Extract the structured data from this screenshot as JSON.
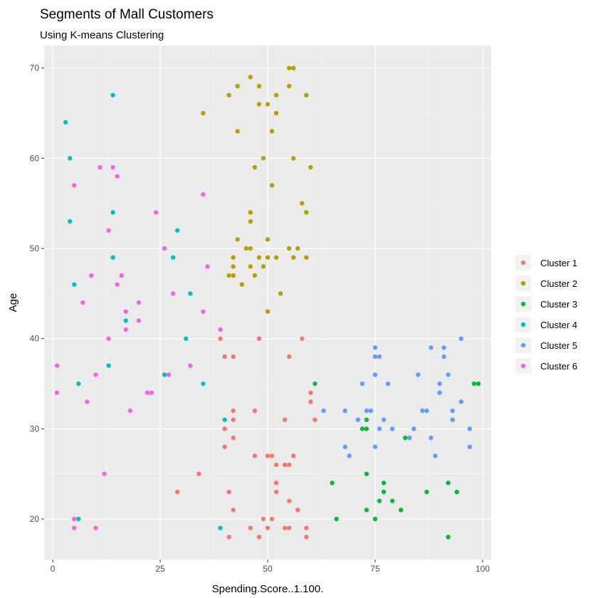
{
  "chart_data": {
    "type": "scatter",
    "title": "Segments of Mall Customers",
    "subtitle": "Using K-means Clustering",
    "xlabel": "Spending.Score..1.100.",
    "ylabel": "Age",
    "xlim": [
      -2,
      102
    ],
    "ylim": [
      15.5,
      72.5
    ],
    "xticks": [
      0,
      25,
      50,
      75,
      100
    ],
    "yticks": [
      20,
      30,
      40,
      50,
      60,
      70
    ],
    "grid": true,
    "legend_position": "right",
    "series": [
      {
        "name": "Cluster 1",
        "color": "#F8766D",
        "points": [
          [
            39,
            40
          ],
          [
            40,
            38
          ],
          [
            42,
            38
          ],
          [
            48,
            40
          ],
          [
            55,
            38
          ],
          [
            58,
            40
          ],
          [
            60,
            34
          ],
          [
            60,
            33
          ],
          [
            61,
            31
          ],
          [
            42,
            32
          ],
          [
            42,
            31
          ],
          [
            47,
            32
          ],
          [
            54,
            31
          ],
          [
            40,
            30
          ],
          [
            42,
            29
          ],
          [
            40,
            28
          ],
          [
            47,
            27
          ],
          [
            50,
            27
          ],
          [
            51,
            27
          ],
          [
            52,
            26
          ],
          [
            54,
            26
          ],
          [
            55,
            26
          ],
          [
            56,
            27
          ],
          [
            34,
            25
          ],
          [
            52,
            24
          ],
          [
            52,
            23
          ],
          [
            29,
            23
          ],
          [
            41,
            23
          ],
          [
            55,
            22
          ],
          [
            57,
            21
          ],
          [
            42,
            21
          ],
          [
            49,
            20
          ],
          [
            51,
            20
          ],
          [
            46,
            19
          ],
          [
            50,
            19
          ],
          [
            54,
            19
          ],
          [
            55,
            19
          ],
          [
            59,
            19
          ],
          [
            59,
            18
          ],
          [
            41,
            18
          ],
          [
            48,
            18
          ]
        ]
      },
      {
        "name": "Cluster 2",
        "color": "#B79F00",
        "points": [
          [
            46,
            69
          ],
          [
            55,
            70
          ],
          [
            56,
            70
          ],
          [
            48,
            68
          ],
          [
            55,
            68
          ],
          [
            41,
            67
          ],
          [
            43,
            68
          ],
          [
            52,
            67
          ],
          [
            59,
            67
          ],
          [
            48,
            66
          ],
          [
            50,
            66
          ],
          [
            52,
            65
          ],
          [
            35,
            65
          ],
          [
            43,
            63
          ],
          [
            51,
            63
          ],
          [
            49,
            60
          ],
          [
            56,
            60
          ],
          [
            47,
            59
          ],
          [
            60,
            59
          ],
          [
            51,
            57
          ],
          [
            58,
            55
          ],
          [
            59,
            54
          ],
          [
            46,
            54
          ],
          [
            46,
            53
          ],
          [
            43,
            51
          ],
          [
            50,
            51
          ],
          [
            42,
            49
          ],
          [
            42,
            48
          ],
          [
            45,
            50
          ],
          [
            46,
            50
          ],
          [
            48,
            49
          ],
          [
            50,
            49
          ],
          [
            52,
            49
          ],
          [
            55,
            50
          ],
          [
            57,
            50
          ],
          [
            56,
            49
          ],
          [
            59,
            49
          ],
          [
            41,
            47
          ],
          [
            42,
            47
          ],
          [
            46,
            48
          ],
          [
            47,
            47
          ],
          [
            49,
            48
          ],
          [
            44,
            46
          ],
          [
            53,
            45
          ],
          [
            50,
            43
          ]
        ]
      },
      {
        "name": "Cluster 3",
        "color": "#00BA38",
        "points": [
          [
            61,
            35
          ],
          [
            98,
            35
          ],
          [
            99,
            35
          ],
          [
            72,
            30
          ],
          [
            73,
            31
          ],
          [
            73,
            30
          ],
          [
            82,
            29
          ],
          [
            65,
            24
          ],
          [
            73,
            25
          ],
          [
            77,
            24
          ],
          [
            77,
            23
          ],
          [
            87,
            23
          ],
          [
            92,
            24
          ],
          [
            94,
            23
          ],
          [
            76,
            22
          ],
          [
            79,
            22
          ],
          [
            73,
            21
          ],
          [
            81,
            21
          ],
          [
            66,
            20
          ],
          [
            75,
            20
          ],
          [
            92,
            18
          ]
        ]
      },
      {
        "name": "Cluster 4",
        "color": "#00BFC4",
        "points": [
          [
            14,
            67
          ],
          [
            3,
            64
          ],
          [
            4,
            60
          ],
          [
            14,
            54
          ],
          [
            4,
            53
          ],
          [
            29,
            52
          ],
          [
            14,
            49
          ],
          [
            28,
            49
          ],
          [
            5,
            46
          ],
          [
            32,
            45
          ],
          [
            17,
            42
          ],
          [
            31,
            40
          ],
          [
            13,
            37
          ],
          [
            26,
            36
          ],
          [
            6,
            35
          ],
          [
            35,
            35
          ],
          [
            40,
            31
          ],
          [
            6,
            20
          ],
          [
            39,
            19
          ]
        ]
      },
      {
        "name": "Cluster 5",
        "color": "#619CFF",
        "points": [
          [
            95,
            40
          ],
          [
            75,
            39
          ],
          [
            88,
            39
          ],
          [
            91,
            39
          ],
          [
            75,
            38
          ],
          [
            76,
            38
          ],
          [
            91,
            38
          ],
          [
            72,
            35
          ],
          [
            75,
            36
          ],
          [
            78,
            35
          ],
          [
            85,
            36
          ],
          [
            90,
            35
          ],
          [
            92,
            36
          ],
          [
            90,
            34
          ],
          [
            63,
            32
          ],
          [
            68,
            32
          ],
          [
            71,
            31
          ],
          [
            73,
            32
          ],
          [
            74,
            32
          ],
          [
            77,
            31
          ],
          [
            86,
            32
          ],
          [
            87,
            32
          ],
          [
            93,
            32
          ],
          [
            95,
            33
          ],
          [
            76,
            30
          ],
          [
            79,
            30
          ],
          [
            84,
            30
          ],
          [
            93,
            31
          ],
          [
            97,
            30
          ],
          [
            83,
            29
          ],
          [
            88,
            29
          ],
          [
            68,
            28
          ],
          [
            75,
            28
          ],
          [
            97,
            28
          ],
          [
            69,
            27
          ],
          [
            89,
            27
          ]
        ]
      },
      {
        "name": "Cluster 6",
        "color": "#F564E3",
        "points": [
          [
            11,
            59
          ],
          [
            14,
            59
          ],
          [
            15,
            58
          ],
          [
            5,
            57
          ],
          [
            35,
            56
          ],
          [
            24,
            54
          ],
          [
            13,
            52
          ],
          [
            26,
            50
          ],
          [
            36,
            48
          ],
          [
            9,
            47
          ],
          [
            16,
            47
          ],
          [
            15,
            46
          ],
          [
            28,
            45
          ],
          [
            7,
            44
          ],
          [
            20,
            44
          ],
          [
            17,
            43
          ],
          [
            35,
            43
          ],
          [
            17,
            41
          ],
          [
            20,
            42
          ],
          [
            39,
            41
          ],
          [
            13,
            40
          ],
          [
            1,
            37
          ],
          [
            32,
            37
          ],
          [
            10,
            36
          ],
          [
            27,
            36
          ],
          [
            1,
            34
          ],
          [
            22,
            34
          ],
          [
            23,
            34
          ],
          [
            8,
            33
          ],
          [
            18,
            32
          ],
          [
            12,
            25
          ],
          [
            5,
            20
          ],
          [
            5,
            19
          ],
          [
            10,
            19
          ]
        ]
      }
    ]
  }
}
